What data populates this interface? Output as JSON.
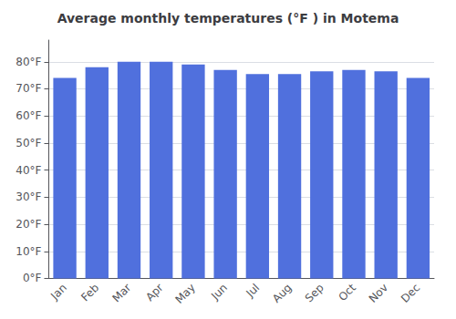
{
  "chart_data": {
    "type": "bar",
    "title": "Average monthly temperatures (°F ) in Motema",
    "categories": [
      "Jan",
      "Feb",
      "Mar",
      "Apr",
      "May",
      "Jun",
      "Jul",
      "Aug",
      "Sep",
      "Oct",
      "Nov",
      "Dec"
    ],
    "values": [
      74.0,
      78.0,
      80.0,
      80.0,
      79.0,
      77.0,
      75.5,
      75.5,
      76.5,
      77.0,
      76.5,
      74.0
    ],
    "ylim": [
      0,
      88
    ],
    "yticks": [
      {
        "value": 0,
        "label": "0°F"
      },
      {
        "value": 10,
        "label": "10°F"
      },
      {
        "value": 20,
        "label": "20°F"
      },
      {
        "value": 30,
        "label": "30°F"
      },
      {
        "value": 40,
        "label": "40°F"
      },
      {
        "value": 50,
        "label": "50°F"
      },
      {
        "value": 60,
        "label": "60°F"
      },
      {
        "value": 70,
        "label": "70°F"
      },
      {
        "value": 80,
        "label": "80°F"
      }
    ],
    "grid": true
  }
}
